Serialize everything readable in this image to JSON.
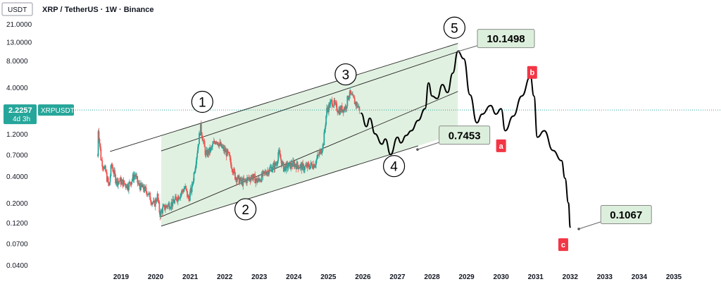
{
  "header": {
    "currency_badge": "USDT",
    "title": "XRP / TetherUS · 1W · Binance"
  },
  "price_tag": {
    "price": "2.2257",
    "symbol": "XRPUSDT",
    "countdown": "4d 3h",
    "value": 2.2257
  },
  "colors": {
    "up_candle": "#26a69a",
    "down_candle": "#ef5350",
    "correction_label": "#f23645",
    "price_tag": "#26a69a",
    "channel_fill": "#c8e6c9",
    "callout_fill": "#dcefdc"
  },
  "chart_data": {
    "type": "line",
    "scale": "log",
    "ylim": [
      0.04,
      21.0
    ],
    "xlim": [
      2018.3,
      2035.8
    ],
    "y_ticks": [
      {
        "value": 21.0,
        "label": "21.0000"
      },
      {
        "value": 13.0,
        "label": "13.0000"
      },
      {
        "value": 8.0,
        "label": "8.0000"
      },
      {
        "value": 4.0,
        "label": "4.0000"
      },
      {
        "value": 1.2,
        "label": "1.2000"
      },
      {
        "value": 0.7,
        "label": "0.7000"
      },
      {
        "value": 0.4,
        "label": "0.4000"
      },
      {
        "value": 0.2,
        "label": "0.2000"
      },
      {
        "value": 0.12,
        "label": "0.1200"
      },
      {
        "value": 0.07,
        "label": "0.0700"
      },
      {
        "value": 0.04,
        "label": "0.0400"
      }
    ],
    "x_ticks": [
      {
        "value": 2019,
        "label": "2019"
      },
      {
        "value": 2020,
        "label": "2020"
      },
      {
        "value": 2021,
        "label": "2021"
      },
      {
        "value": 2022,
        "label": "2022"
      },
      {
        "value": 2023,
        "label": "2023"
      },
      {
        "value": 2024,
        "label": "2024"
      },
      {
        "value": 2025,
        "label": "2025"
      },
      {
        "value": 2026,
        "label": "2026"
      },
      {
        "value": 2027,
        "label": "2027"
      },
      {
        "value": 2028,
        "label": "2028"
      },
      {
        "value": 2029,
        "label": "2029"
      },
      {
        "value": 2030,
        "label": "2030"
      },
      {
        "value": 2031,
        "label": "2031"
      },
      {
        "value": 2032,
        "label": "2032"
      },
      {
        "value": 2033,
        "label": "2033"
      },
      {
        "value": 2034,
        "label": "2034"
      },
      {
        "value": 2035,
        "label": "2035"
      }
    ],
    "price_history": [
      {
        "t": 2018.32,
        "p": 0.68
      },
      {
        "t": 2018.34,
        "p": 1.4
      },
      {
        "t": 2018.42,
        "p": 0.62
      },
      {
        "t": 2018.55,
        "p": 0.45
      },
      {
        "t": 2018.65,
        "p": 0.3
      },
      {
        "t": 2018.72,
        "p": 0.55
      },
      {
        "t": 2018.85,
        "p": 0.36
      },
      {
        "t": 2019.0,
        "p": 0.35
      },
      {
        "t": 2019.2,
        "p": 0.31
      },
      {
        "t": 2019.4,
        "p": 0.42
      },
      {
        "t": 2019.5,
        "p": 0.32
      },
      {
        "t": 2019.75,
        "p": 0.27
      },
      {
        "t": 2019.95,
        "p": 0.19
      },
      {
        "t": 2020.05,
        "p": 0.24
      },
      {
        "t": 2020.12,
        "p": 0.15
      },
      {
        "t": 2020.2,
        "p": 0.17
      },
      {
        "t": 2020.35,
        "p": 0.19
      },
      {
        "t": 2020.5,
        "p": 0.2
      },
      {
        "t": 2020.7,
        "p": 0.25
      },
      {
        "t": 2020.85,
        "p": 0.3
      },
      {
        "t": 2020.95,
        "p": 0.22
      },
      {
        "t": 2021.05,
        "p": 0.3
      },
      {
        "t": 2021.2,
        "p": 0.75
      },
      {
        "t": 2021.3,
        "p": 1.45
      },
      {
        "t": 2021.45,
        "p": 0.7
      },
      {
        "t": 2021.6,
        "p": 0.8
      },
      {
        "t": 2021.75,
        "p": 1.05
      },
      {
        "t": 2021.9,
        "p": 0.85
      },
      {
        "t": 2022.1,
        "p": 0.7
      },
      {
        "t": 2022.3,
        "p": 0.4
      },
      {
        "t": 2022.5,
        "p": 0.34
      },
      {
        "t": 2022.8,
        "p": 0.4
      },
      {
        "t": 2022.95,
        "p": 0.35
      },
      {
        "t": 2023.2,
        "p": 0.45
      },
      {
        "t": 2023.5,
        "p": 0.55
      },
      {
        "t": 2023.55,
        "p": 0.75
      },
      {
        "t": 2023.7,
        "p": 0.5
      },
      {
        "t": 2024.0,
        "p": 0.55
      },
      {
        "t": 2024.3,
        "p": 0.5
      },
      {
        "t": 2024.6,
        "p": 0.55
      },
      {
        "t": 2024.85,
        "p": 0.9
      },
      {
        "t": 2024.95,
        "p": 2.2
      },
      {
        "t": 2025.1,
        "p": 2.8
      },
      {
        "t": 2025.3,
        "p": 2.2
      },
      {
        "t": 2025.5,
        "p": 2.4
      },
      {
        "t": 2025.6,
        "p": 3.5
      },
      {
        "t": 2025.75,
        "p": 2.8
      },
      {
        "t": 2025.9,
        "p": 2.3
      }
    ],
    "projection": [
      {
        "t": 2025.95,
        "p": 2.05
      },
      {
        "t": 2026.1,
        "p": 1.45
      },
      {
        "t": 2026.2,
        "p": 1.8
      },
      {
        "t": 2026.35,
        "p": 1.2
      },
      {
        "t": 2026.55,
        "p": 0.92
      },
      {
        "t": 2026.65,
        "p": 1.05
      },
      {
        "t": 2026.8,
        "p": 0.7
      },
      {
        "t": 2027.0,
        "p": 1.1
      },
      {
        "t": 2027.1,
        "p": 0.95
      },
      {
        "t": 2027.25,
        "p": 1.15
      },
      {
        "t": 2027.4,
        "p": 1.3
      },
      {
        "t": 2027.6,
        "p": 1.7
      },
      {
        "t": 2027.8,
        "p": 2.3
      },
      {
        "t": 2027.9,
        "p": 4.5
      },
      {
        "t": 2028.0,
        "p": 3.2
      },
      {
        "t": 2028.15,
        "p": 3.0
      },
      {
        "t": 2028.3,
        "p": 4.3
      },
      {
        "t": 2028.45,
        "p": 3.5
      },
      {
        "t": 2028.6,
        "p": 5.8
      },
      {
        "t": 2028.75,
        "p": 10.1498
      },
      {
        "t": 2028.92,
        "p": 8.4
      },
      {
        "t": 2029.1,
        "p": 3.3
      },
      {
        "t": 2029.3,
        "p": 1.6
      },
      {
        "t": 2029.45,
        "p": 2.0
      },
      {
        "t": 2029.7,
        "p": 2.5
      },
      {
        "t": 2029.85,
        "p": 2.0
      },
      {
        "t": 2030.0,
        "p": 2.3
      },
      {
        "t": 2030.12,
        "p": 1.3
      },
      {
        "t": 2030.35,
        "p": 1.9
      },
      {
        "t": 2030.6,
        "p": 3.2
      },
      {
        "t": 2030.85,
        "p": 5.3
      },
      {
        "t": 2030.95,
        "p": 3.2
      },
      {
        "t": 2031.05,
        "p": 1.1
      },
      {
        "t": 2031.25,
        "p": 1.3
      },
      {
        "t": 2031.5,
        "p": 0.78
      },
      {
        "t": 2031.75,
        "p": 0.6
      },
      {
        "t": 2031.85,
        "p": 0.38
      },
      {
        "t": 2031.95,
        "p": 0.2
      },
      {
        "t": 2032.0,
        "p": 0.1067
      }
    ],
    "channel_lines": [
      {
        "start": {
          "t": 2018.68,
          "p": 0.76
        },
        "end": {
          "t": 2028.75,
          "p": 12.5
        }
      },
      {
        "start": {
          "t": 2020.16,
          "p": 0.77
        },
        "end": {
          "t": 2028.75,
          "p": 10.1
        }
      },
      {
        "start": {
          "t": 2020.16,
          "p": 0.14
        },
        "end": {
          "t": 2028.75,
          "p": 3.6
        }
      },
      {
        "start": {
          "t": 2020.16,
          "p": 0.11
        },
        "end": {
          "t": 2027.6,
          "p": 0.88
        }
      }
    ],
    "wave_labels": [
      {
        "label": "1",
        "t": 2021.35,
        "p": 2.75
      },
      {
        "label": "2",
        "t": 2022.6,
        "p": 0.17
      },
      {
        "label": "3",
        "t": 2025.5,
        "p": 5.6
      },
      {
        "label": "4",
        "t": 2026.9,
        "p": 0.52
      },
      {
        "label": "5",
        "t": 2028.65,
        "p": 18.8
      }
    ],
    "correction_labels": [
      {
        "label": "a",
        "t": 2030.0,
        "p": 0.88
      },
      {
        "label": "b",
        "t": 2030.9,
        "p": 5.9
      },
      {
        "label": "c",
        "t": 2031.8,
        "p": 0.068
      }
    ],
    "callouts": [
      {
        "text": "10.1498",
        "anchor_t": 2028.77,
        "anchor_p": 10.2,
        "box_t": 2030.14,
        "box_p": 14.2
      },
      {
        "text": "0.7453",
        "anchor_t": 2027.58,
        "anchor_p": 0.8,
        "box_t": 2028.94,
        "box_p": 1.16
      },
      {
        "text": "0.1067",
        "anchor_t": 2032.25,
        "anchor_p": 0.102,
        "box_t": 2033.62,
        "box_p": 0.148
      }
    ]
  }
}
